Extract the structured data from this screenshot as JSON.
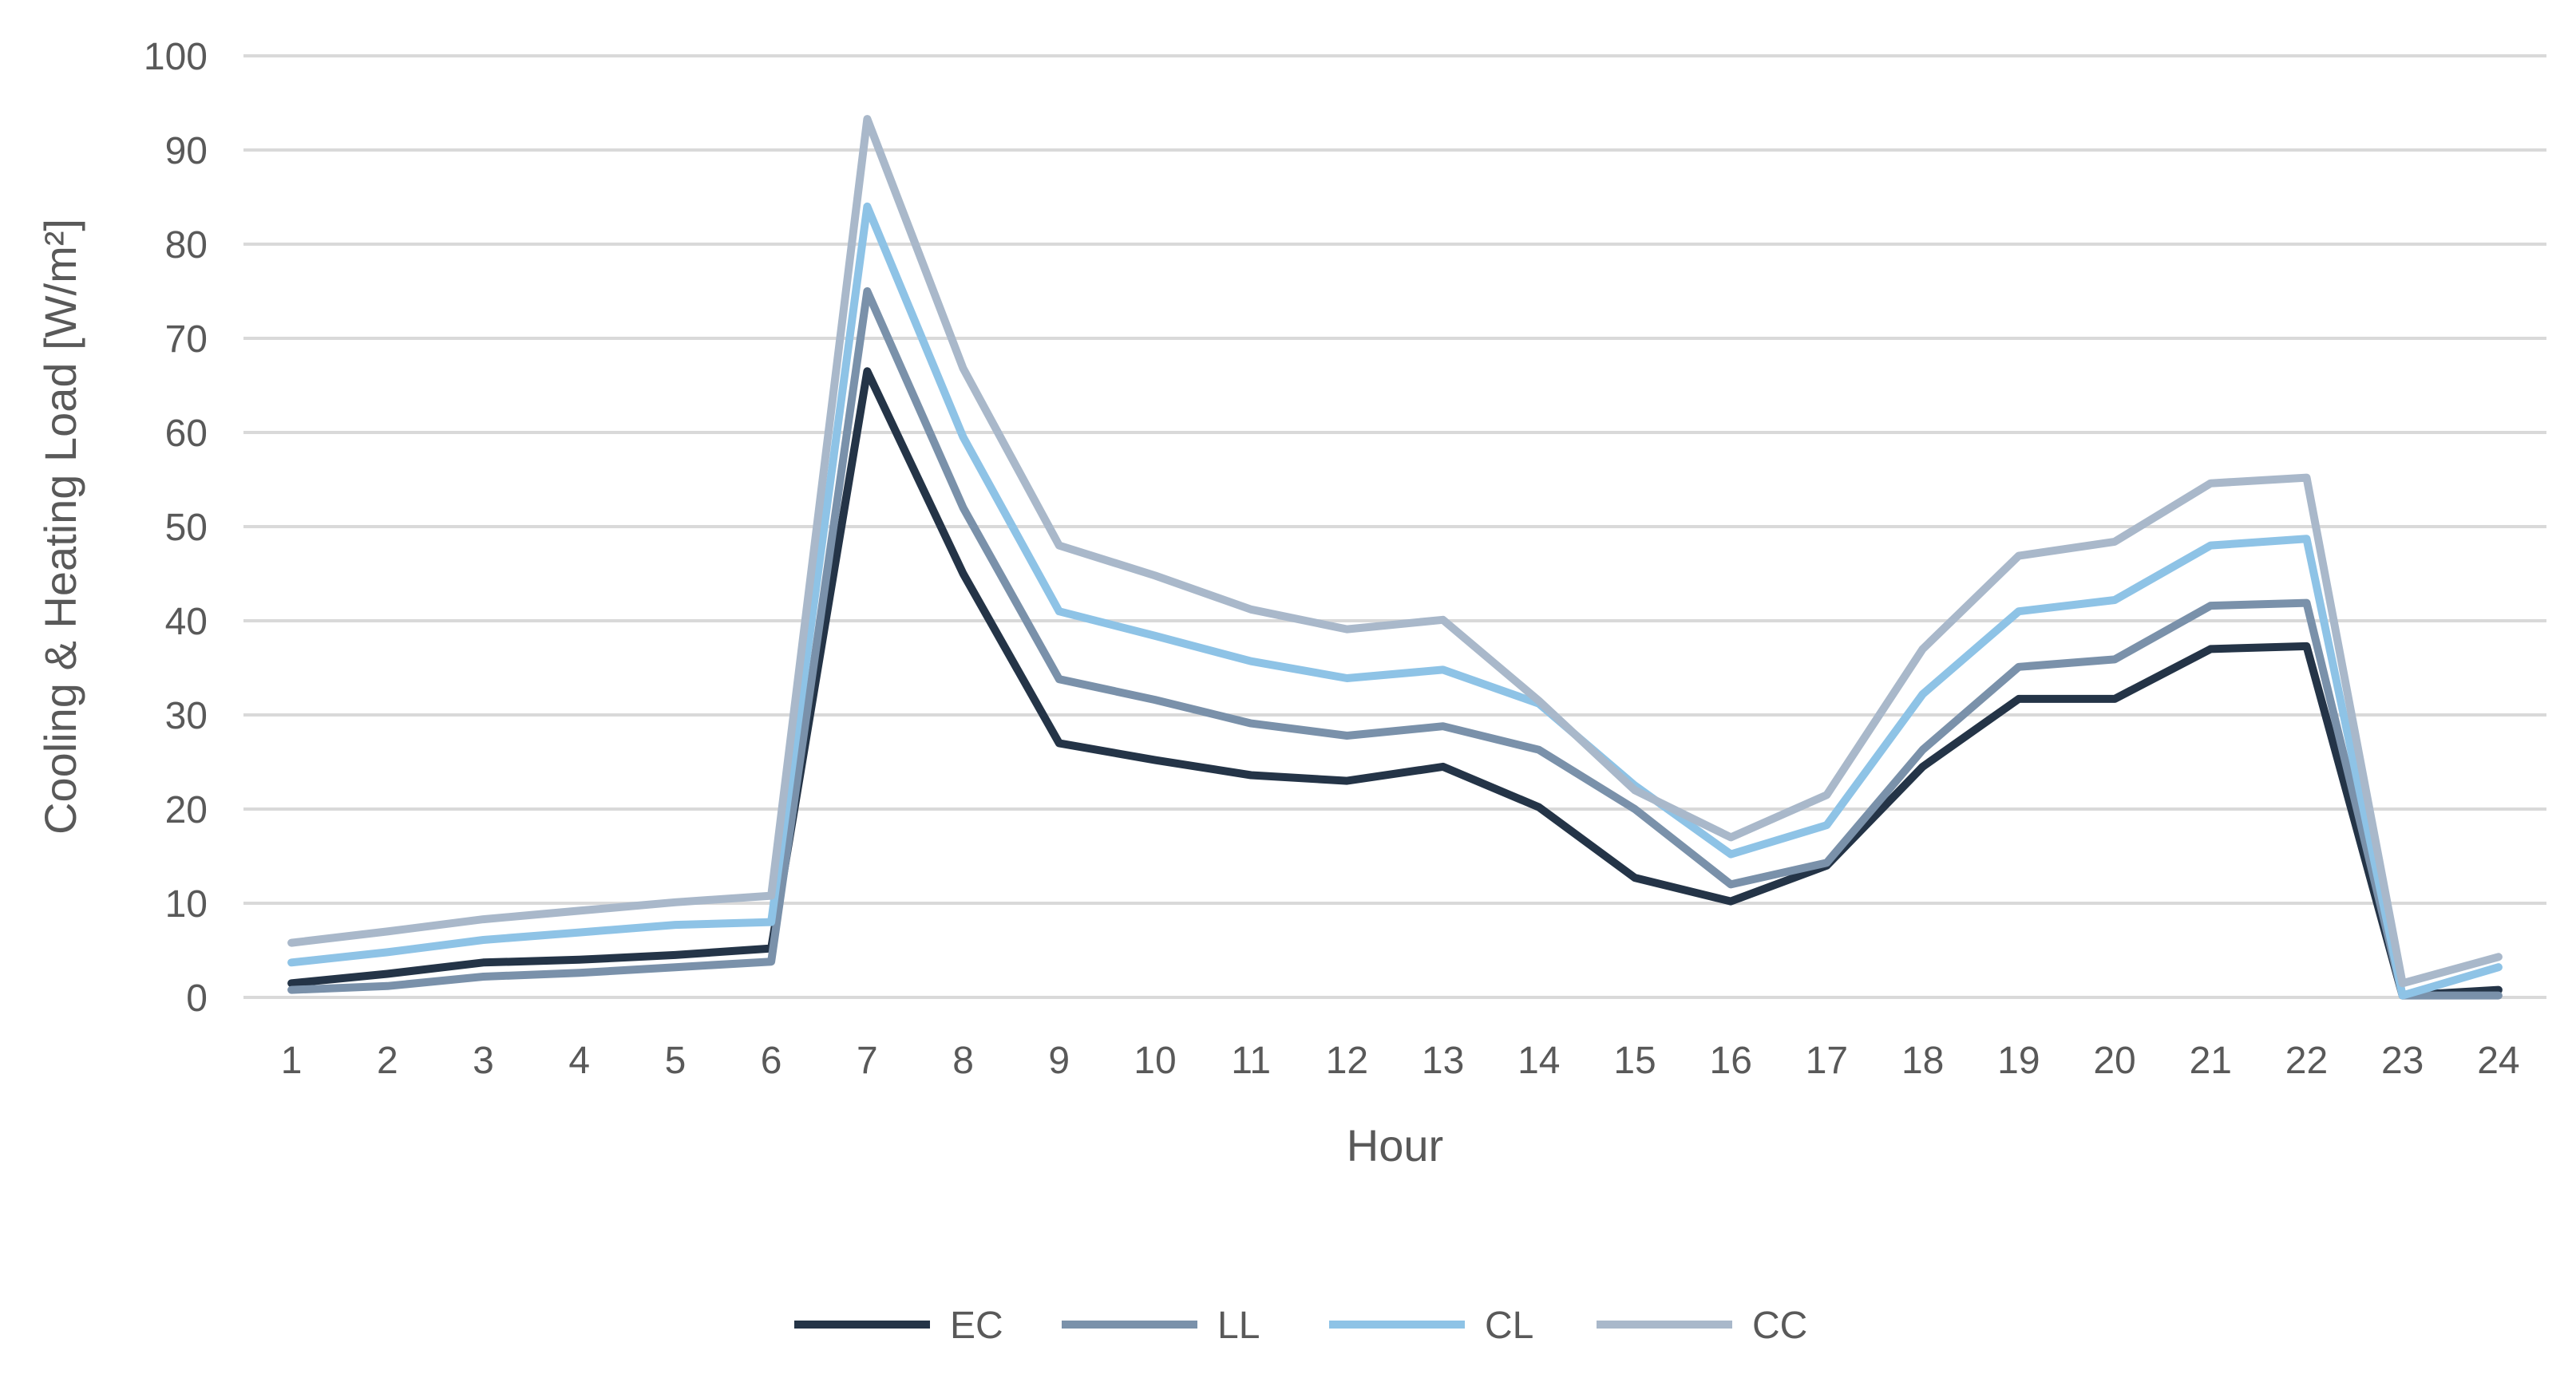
{
  "chart_data": {
    "type": "line",
    "xlabel": "Hour",
    "ylabel": "Cooling & Heating Load [W/m²]",
    "x": [
      "1",
      "2",
      "3",
      "4",
      "5",
      "6",
      "7",
      "8",
      "9",
      "10",
      "11",
      "12",
      "13",
      "14",
      "15",
      "16",
      "17",
      "18",
      "19",
      "20",
      "21",
      "22",
      "23",
      "24"
    ],
    "ylim": [
      0,
      100
    ],
    "yticks": [
      0,
      10,
      20,
      30,
      40,
      50,
      60,
      70,
      80,
      90,
      100
    ],
    "grid": true,
    "legend_position": "bottom",
    "series": [
      {
        "name": "EC",
        "color": "#243447",
        "values": [
          1.5,
          2.5,
          3.7,
          4.0,
          4.5,
          5.2,
          66.5,
          45.0,
          27.0,
          25.2,
          23.6,
          23.0,
          24.5,
          20.2,
          12.7,
          10.2,
          14.0,
          24.5,
          31.7,
          31.7,
          37.0,
          37.3,
          0.2,
          0.8
        ]
      },
      {
        "name": "LL",
        "color": "#7a91aa",
        "values": [
          0.8,
          1.2,
          2.2,
          2.6,
          3.2,
          3.8,
          75.0,
          52.0,
          33.8,
          31.6,
          29.1,
          27.8,
          28.8,
          26.3,
          20.0,
          12.0,
          14.3,
          26.3,
          35.1,
          35.9,
          41.6,
          41.9,
          0.2,
          0.2
        ]
      },
      {
        "name": "CL",
        "color": "#8ec3e6",
        "values": [
          3.7,
          4.8,
          6.1,
          6.9,
          7.7,
          8.0,
          84.0,
          59.5,
          41.0,
          38.4,
          35.7,
          33.9,
          34.8,
          31.2,
          22.5,
          15.2,
          18.3,
          32.2,
          41.0,
          42.2,
          48.0,
          48.7,
          0.2,
          3.2
        ]
      },
      {
        "name": "CC",
        "color": "#a9b8ca",
        "values": [
          5.8,
          7.0,
          8.3,
          9.2,
          10.1,
          10.8,
          93.3,
          66.8,
          48.0,
          44.8,
          41.2,
          39.1,
          40.1,
          31.5,
          22.0,
          17.0,
          21.5,
          37.0,
          46.9,
          48.4,
          54.6,
          55.2,
          1.5,
          4.3
        ]
      }
    ]
  }
}
